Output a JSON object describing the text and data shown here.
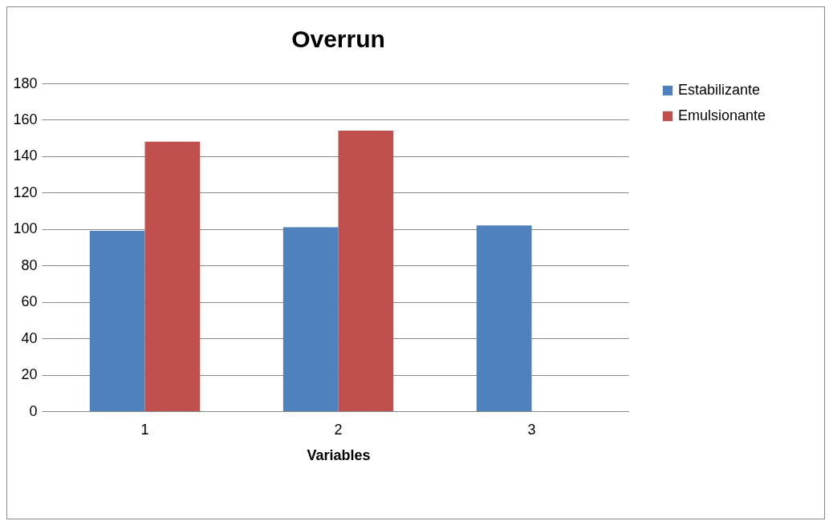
{
  "chart_data": {
    "type": "bar",
    "title": "Overrun",
    "xlabel": "Variables",
    "categories": [
      "1",
      "2",
      "3"
    ],
    "series": [
      {
        "name": "Estabilizante",
        "color": "#4f81bd",
        "values": [
          99,
          101,
          102
        ]
      },
      {
        "name": "Emulsionante",
        "color": "#c0504d",
        "values": [
          148,
          154,
          null
        ]
      }
    ],
    "ylim": [
      0,
      180
    ],
    "yticks": [
      0,
      20,
      40,
      60,
      80,
      100,
      120,
      140,
      160,
      180
    ],
    "grid": "y",
    "legend": "right"
  }
}
